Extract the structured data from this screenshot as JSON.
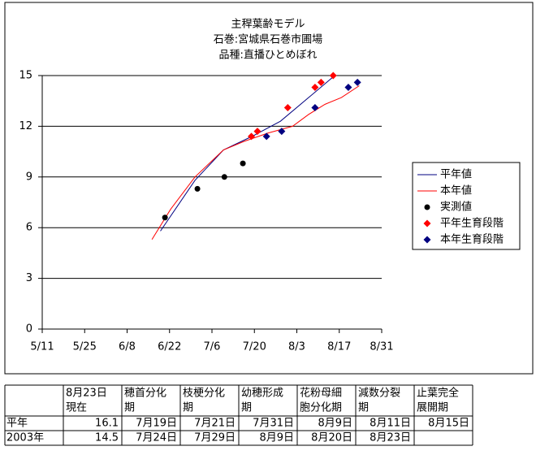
{
  "chart_data": {
    "type": "line",
    "title": "主稈葉齢モデル",
    "subtitle": [
      "石巻:宮城県石巻市圃場",
      "品種:直播ひとめぼれ"
    ],
    "xlim": [
      131,
      243
    ],
    "xticks": [
      {
        "value": 131,
        "label": "5/11"
      },
      {
        "value": 145,
        "label": "5/25"
      },
      {
        "value": 159,
        "label": "6/8"
      },
      {
        "value": 173,
        "label": "6/22"
      },
      {
        "value": 187,
        "label": "7/6"
      },
      {
        "value": 201,
        "label": "7/20"
      },
      {
        "value": 215,
        "label": "8/3"
      },
      {
        "value": 229,
        "label": "8/17"
      },
      {
        "value": 243,
        "label": "8/31"
      }
    ],
    "ylim": [
      0,
      15
    ],
    "yticks": [
      0,
      3,
      6,
      9,
      12,
      15
    ],
    "grid": true,
    "legend": "right",
    "series": [
      {
        "name": "平年値",
        "color": "#000080",
        "marker": "line",
        "x": [
          170,
          181.4,
          190.8,
          200.2,
          209.6,
          218.9,
          227.5
        ],
        "values": [
          5.8,
          8.8,
          10.6,
          11.4,
          12.3,
          13.7,
          15.0
        ]
      },
      {
        "name": "本年値",
        "color": "#ff0000",
        "marker": "line",
        "x": [
          167.2,
          173.4,
          181.4,
          190.8,
          197.5,
          205.5,
          213.6,
          218.9,
          224.3,
          229.7,
          235.6
        ],
        "values": [
          5.3,
          7.1,
          9.0,
          10.6,
          11.1,
          11.6,
          12.0,
          12.7,
          13.3,
          13.7,
          14.4
        ]
      },
      {
        "name": "実測値",
        "color": "#000000",
        "marker": "circle",
        "x": [
          171.5,
          182.2,
          191.1,
          197.2
        ],
        "values": [
          6.6,
          8.3,
          9.0,
          9.8
        ]
      },
      {
        "name": "平年生育段階",
        "color": "#ff0000",
        "marker": "diamond",
        "x": [
          200,
          202,
          212,
          221,
          223,
          227
        ],
        "values": [
          11.4,
          11.7,
          13.1,
          14.3,
          14.6,
          15.0
        ]
      },
      {
        "name": "本年生育段階",
        "color": "#000080",
        "marker": "diamond",
        "x": [
          205,
          210,
          221,
          232,
          235
        ],
        "values": [
          11.4,
          11.7,
          13.1,
          14.3,
          14.6
        ]
      }
    ]
  },
  "table": {
    "header": [
      [],
      [
        "8月23日",
        "現在"
      ],
      [
        "穂首分化",
        "期"
      ],
      [
        "枝梗分化",
        "期"
      ],
      [
        "幼穂形成",
        "期"
      ],
      [
        "花粉母細",
        "胞分化期"
      ],
      [
        "減数分裂",
        "期"
      ],
      [
        "止葉完全",
        "展開期"
      ]
    ],
    "rows": [
      [
        "平年",
        "16.1",
        "7月19日",
        "7月21日",
        "7月31日",
        "8月9日",
        "8月11日",
        "8月15日"
      ],
      [
        "2003年",
        "14.5",
        "7月24日",
        "7月29日",
        "8月9日",
        "8月20日",
        "8月23日"
      ]
    ]
  }
}
